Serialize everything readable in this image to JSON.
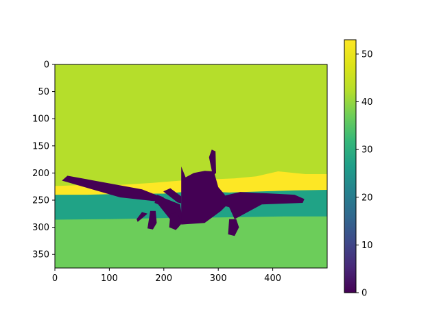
{
  "chart_data": {
    "type": "heatmap",
    "image_width": 500,
    "image_height": 375,
    "xlim": [
      0,
      500
    ],
    "ylim": [
      375,
      0
    ],
    "x_ticks": [
      0,
      100,
      200,
      300,
      400
    ],
    "y_ticks": [
      0,
      50,
      100,
      150,
      200,
      250,
      300,
      350
    ],
    "colorbar": {
      "colormap": "viridis",
      "range": [
        0,
        53
      ],
      "ticks": [
        0,
        10,
        20,
        30,
        40,
        50
      ]
    },
    "regions": [
      {
        "label": "background",
        "value": 46,
        "color": "#b5de2b"
      },
      {
        "label": "horizon-band",
        "value": 53,
        "color": "#fde725"
      },
      {
        "label": "middle-band",
        "value": 33,
        "color": "#20a386"
      },
      {
        "label": "ground",
        "value": 41,
        "color": "#6ccd5a"
      },
      {
        "label": "airplane",
        "value": 0,
        "color": "#440154"
      }
    ],
    "yellow_band_polygon": [
      [
        0,
        255
      ],
      [
        60,
        252
      ],
      [
        140,
        253
      ],
      [
        200,
        250
      ],
      [
        260,
        247
      ],
      [
        320,
        250
      ],
      [
        360,
        247
      ],
      [
        420,
        245
      ],
      [
        470,
        243
      ],
      [
        500,
        241
      ],
      [
        500,
        202
      ],
      [
        460,
        202
      ],
      [
        410,
        197
      ],
      [
        370,
        206
      ],
      [
        330,
        210
      ],
      [
        280,
        212
      ],
      [
        230,
        214
      ],
      [
        180,
        218
      ],
      [
        120,
        222
      ],
      [
        60,
        222
      ],
      [
        0,
        224
      ]
    ],
    "teal_band_polygon": [
      [
        0,
        240
      ],
      [
        60,
        240
      ],
      [
        140,
        238
      ],
      [
        200,
        238
      ],
      [
        260,
        233
      ],
      [
        320,
        236
      ],
      [
        380,
        234
      ],
      [
        440,
        232
      ],
      [
        500,
        231
      ],
      [
        500,
        280
      ],
      [
        420,
        280
      ],
      [
        300,
        282
      ],
      [
        200,
        283
      ],
      [
        100,
        285
      ],
      [
        0,
        286
      ]
    ],
    "airplane_polygons": [
      [
        [
          13,
          214
        ],
        [
          23,
          205
        ],
        [
          160,
          230
        ],
        [
          185,
          240
        ],
        [
          230,
          258
        ],
        [
          235,
          290
        ],
        [
          225,
          302
        ],
        [
          185,
          252
        ],
        [
          120,
          245
        ]
      ],
      [
        [
          458,
          248
        ],
        [
          455,
          255
        ],
        [
          380,
          258
        ],
        [
          330,
          285
        ],
        [
          320,
          263
        ],
        [
          300,
          258
        ],
        [
          298,
          245
        ],
        [
          340,
          235
        ],
        [
          440,
          240
        ]
      ],
      [
        [
          232,
          188
        ],
        [
          232,
          295
        ],
        [
          275,
          292
        ],
        [
          305,
          270
        ],
        [
          315,
          260
        ],
        [
          312,
          240
        ],
        [
          300,
          226
        ],
        [
          292,
          197
        ],
        [
          275,
          196
        ],
        [
          255,
          200
        ],
        [
          240,
          208
        ]
      ],
      [
        [
          199,
          234
        ],
        [
          212,
          228
        ],
        [
          232,
          243
        ],
        [
          232,
          256
        ],
        [
          225,
          254
        ]
      ],
      [
        [
          283,
          171
        ],
        [
          288,
          157
        ],
        [
          295,
          160
        ],
        [
          296,
          200
        ],
        [
          290,
          205
        ]
      ],
      [
        [
          170,
          302
        ],
        [
          180,
          304
        ],
        [
          187,
          292
        ],
        [
          185,
          270
        ],
        [
          175,
          270
        ]
      ],
      [
        [
          318,
          313
        ],
        [
          330,
          316
        ],
        [
          338,
          300
        ],
        [
          333,
          285
        ],
        [
          320,
          285
        ]
      ],
      [
        [
          152,
          290
        ],
        [
          162,
          282
        ],
        [
          170,
          275
        ],
        [
          160,
          272
        ],
        [
          150,
          285
        ]
      ],
      [
        [
          210,
          300
        ],
        [
          222,
          305
        ],
        [
          232,
          294
        ],
        [
          225,
          272
        ],
        [
          212,
          276
        ]
      ],
      [
        [
          183,
          255
        ],
        [
          195,
          260
        ],
        [
          200,
          245
        ],
        [
          188,
          240
        ]
      ]
    ]
  }
}
